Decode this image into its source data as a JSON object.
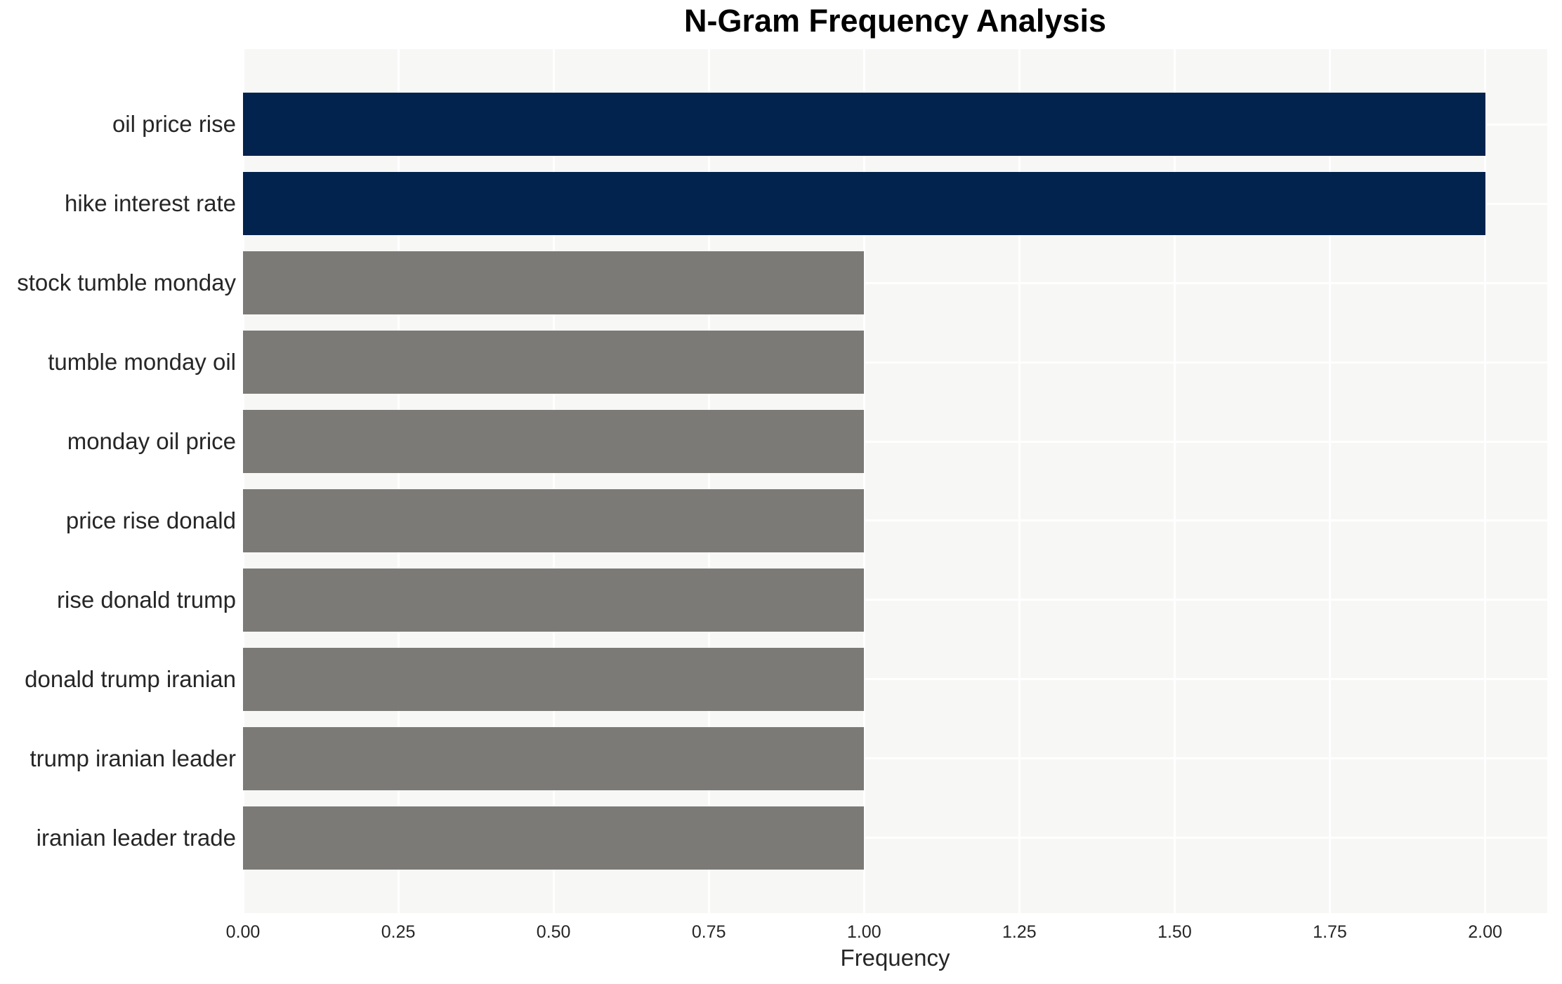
{
  "chart_data": {
    "type": "bar",
    "orientation": "horizontal",
    "title": "N-Gram Frequency Analysis",
    "xlabel": "Frequency",
    "ylabel": "",
    "categories": [
      "oil price rise",
      "hike interest rate",
      "stock tumble monday",
      "tumble monday oil",
      "monday oil price",
      "price rise donald",
      "rise donald trump",
      "donald trump iranian",
      "trump iranian leader",
      "iranian leader trade"
    ],
    "values": [
      2,
      2,
      1,
      1,
      1,
      1,
      1,
      1,
      1,
      1
    ],
    "bar_colors": [
      "#02234d",
      "#02234d",
      "#7b7a77",
      "#7b7a77",
      "#7b7a77",
      "#7b7a77",
      "#7b7a77",
      "#7b7a77",
      "#7b7a77",
      "#7b7a77"
    ],
    "xlim": [
      0,
      2.1
    ],
    "xticks": [
      0,
      0.25,
      0.5,
      0.75,
      1.0,
      1.25,
      1.5,
      1.75,
      2.0
    ],
    "xtick_labels": [
      "0.00",
      "0.25",
      "0.50",
      "0.75",
      "1.00",
      "1.25",
      "1.50",
      "1.75",
      "2.00"
    ],
    "grid": true,
    "legend_position": "none",
    "colors": {
      "highlight_bar": "#02234d",
      "default_bar": "#7b7a77",
      "plot_background": "#f7f7f6",
      "gridline": "#ffffff",
      "text": "#262626",
      "title_text": "#000000",
      "figure_background": "#ffffff"
    }
  }
}
